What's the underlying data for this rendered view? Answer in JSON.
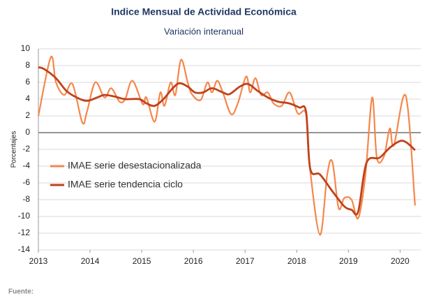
{
  "chart_data": {
    "type": "line",
    "title": "Indice Mensual de  Actividad Económica",
    "subtitle": "Variación interanual",
    "y_label": "Porcentajes",
    "footnote": "Fuente:",
    "xlim": [
      2013,
      2020.4
    ],
    "xticks": [
      2013,
      2014,
      2015,
      2016,
      2017,
      2018,
      2019,
      2020
    ],
    "ylim": [
      -14,
      10
    ],
    "yticks": [
      -14,
      -12,
      -10,
      -8,
      -6,
      -4,
      -2,
      0,
      2,
      4,
      6,
      8,
      10
    ],
    "grid": true,
    "legend": "left",
    "series": [
      {
        "name": "IMAE serie desestacionalizada",
        "color": "#f4874b",
        "x": [
          2013.0,
          2013.24,
          2013.34,
          2013.5,
          2013.66,
          2013.85,
          2013.94,
          2014.1,
          2014.28,
          2014.41,
          2014.57,
          2014.68,
          2014.82,
          2015.02,
          2015.09,
          2015.25,
          2015.36,
          2015.44,
          2015.56,
          2015.65,
          2015.76,
          2015.89,
          2015.97,
          2016.14,
          2016.27,
          2016.36,
          2016.46,
          2016.57,
          2016.73,
          2016.86,
          2017.02,
          2017.1,
          2017.2,
          2017.31,
          2017.44,
          2017.55,
          2017.71,
          2017.86,
          2018.02,
          2018.18,
          2018.26,
          2018.45,
          2018.59,
          2018.69,
          2018.81,
          2018.92,
          2019.06,
          2019.19,
          2019.33,
          2019.46,
          2019.55,
          2019.69,
          2019.8,
          2019.88,
          2020.11,
          2020.29
        ],
        "values": [
          2,
          9,
          6,
          4.5,
          5.8,
          1.2,
          2.5,
          6,
          4.2,
          5.3,
          3.7,
          4,
          6.2,
          3.4,
          4.2,
          1.3,
          4.8,
          3.2,
          6,
          4.5,
          8.7,
          6,
          4.6,
          3.9,
          6,
          4.8,
          6.2,
          4.8,
          2.2,
          3.5,
          6.7,
          4.8,
          6.5,
          4.5,
          4.8,
          3.5,
          3.2,
          4.8,
          2.3,
          2.2,
          -4.5,
          -12.2,
          -5,
          -3.5,
          -9,
          -7.8,
          -8,
          -10.2,
          -5,
          4.2,
          -3,
          -2.8,
          0.5,
          -1.5,
          4.4,
          -8.7
        ]
      },
      {
        "name": "IMAE serie  tendencia ciclo",
        "color": "#c0421a",
        "x": [
          2013.0,
          2013.11,
          2013.34,
          2013.54,
          2013.74,
          2013.94,
          2014.14,
          2014.28,
          2014.48,
          2014.68,
          2014.95,
          2015.09,
          2015.25,
          2015.42,
          2015.6,
          2015.73,
          2015.89,
          2016.03,
          2016.19,
          2016.36,
          2016.57,
          2016.7,
          2016.9,
          2017.06,
          2017.24,
          2017.44,
          2017.64,
          2017.85,
          2018.05,
          2018.18,
          2018.26,
          2018.45,
          2018.69,
          2018.92,
          2019.06,
          2019.19,
          2019.35,
          2019.6,
          2019.8,
          2020.0,
          2020.13,
          2020.29
        ],
        "values": [
          7.8,
          7.6,
          6.5,
          5,
          4.2,
          3.8,
          4.2,
          4.5,
          4.3,
          4,
          4,
          3.5,
          3.2,
          4,
          5.3,
          5.9,
          5.5,
          4.8,
          4.8,
          5.3,
          4.8,
          4.6,
          5.5,
          5.8,
          5,
          4.2,
          3.7,
          3.5,
          3,
          2.5,
          -4.3,
          -5,
          -7,
          -8.8,
          -9.2,
          -9.4,
          -3.6,
          -3,
          -1.8,
          -1,
          -1.2,
          -2.1
        ]
      }
    ]
  }
}
